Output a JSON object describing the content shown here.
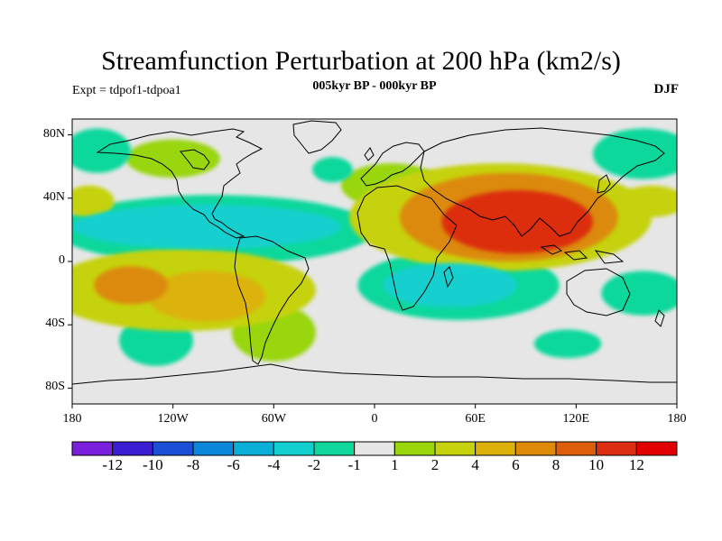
{
  "title": "Streamfunction Perturbation at 200 hPa (km2/s)",
  "left_string": "Expt = tdpof1-tdpoa1",
  "center_string": "005kyr BP - 000kyr BP",
  "right_string": "DJF",
  "y_ticks": [
    {
      "lat": 80,
      "label": "80N"
    },
    {
      "lat": 40,
      "label": "40N"
    },
    {
      "lat": 0,
      "label": "0"
    },
    {
      "lat": -40,
      "label": "40S"
    },
    {
      "lat": -80,
      "label": "80S"
    }
  ],
  "x_ticks": [
    {
      "lon": -180,
      "label": "180"
    },
    {
      "lon": -120,
      "label": "120W"
    },
    {
      "lon": -60,
      "label": "60W"
    },
    {
      "lon": 0,
      "label": "0"
    },
    {
      "lon": 60,
      "label": "60E"
    },
    {
      "lon": 120,
      "label": "120E"
    },
    {
      "lon": 180,
      "label": "180"
    }
  ],
  "colorbar": {
    "colors": [
      "#7a1fdc",
      "#3b1ed2",
      "#1a4fd6",
      "#0a86db",
      "#0bb0d8",
      "#12d0cf",
      "#10d89c",
      "#e6e6e6",
      "#99d60c",
      "#c6d20c",
      "#dcb20a",
      "#dc8a08",
      "#dc5e0a",
      "#dc2e10",
      "#e00000"
    ],
    "labels": [
      "-12",
      "-10",
      "-8",
      "-6",
      "-4",
      "-2",
      "-1",
      "1",
      "2",
      "4",
      "6",
      "8",
      "10",
      "12"
    ]
  },
  "chart_data": {
    "type": "heatmap",
    "title": "Streamfunction Perturbation at 200 hPa (km2/s)",
    "subtitle": "005kyr BP - 000kyr BP",
    "season": "DJF",
    "experiment": "Expt = tdpof1-tdpoa1",
    "x_range": [
      -180,
      180
    ],
    "y_range": [
      -90,
      90
    ],
    "levels": [
      -12,
      -10,
      -8,
      -6,
      -4,
      -2,
      -1,
      1,
      2,
      4,
      6,
      8,
      10,
      12
    ],
    "features": [
      {
        "lon": 85,
        "lat": 25,
        "value": 11,
        "rx": 45,
        "ry": 20
      },
      {
        "lon": 80,
        "lat": 28,
        "value": 6,
        "rx": 65,
        "ry": 28
      },
      {
        "lon": 75,
        "lat": 28,
        "value": 2.5,
        "rx": 90,
        "ry": 34
      },
      {
        "lon": 10,
        "lat": 48,
        "value": 1.5,
        "rx": 30,
        "ry": 14
      },
      {
        "lon": -145,
        "lat": -15,
        "value": 7,
        "rx": 22,
        "ry": 12
      },
      {
        "lon": -100,
        "lat": -22,
        "value": 4,
        "rx": 35,
        "ry": 16
      },
      {
        "lon": -115,
        "lat": -18,
        "value": 2.5,
        "rx": 80,
        "ry": 26
      },
      {
        "lon": -60,
        "lat": -45,
        "value": 1.5,
        "rx": 25,
        "ry": 18
      },
      {
        "lon": 165,
        "lat": 38,
        "value": 2,
        "rx": 20,
        "ry": 10
      },
      {
        "lon": -170,
        "lat": 38,
        "value": 2,
        "rx": 15,
        "ry": 10
      },
      {
        "lon": -120,
        "lat": 65,
        "value": 1.5,
        "rx": 28,
        "ry": 12
      },
      {
        "lon": -100,
        "lat": 22,
        "value": -3,
        "rx": 80,
        "ry": 14
      },
      {
        "lon": -95,
        "lat": 20,
        "value": -1.5,
        "rx": 95,
        "ry": 22
      },
      {
        "lon": 45,
        "lat": -15,
        "value": -3,
        "rx": 40,
        "ry": 14
      },
      {
        "lon": 50,
        "lat": -15,
        "value": -1.5,
        "rx": 60,
        "ry": 22
      },
      {
        "lon": -130,
        "lat": -50,
        "value": -2,
        "rx": 22,
        "ry": 16
      },
      {
        "lon": 115,
        "lat": -52,
        "value": -1.5,
        "rx": 20,
        "ry": 9
      },
      {
        "lon": 160,
        "lat": 68,
        "value": -1.5,
        "rx": 30,
        "ry": 16
      },
      {
        "lon": -165,
        "lat": 70,
        "value": -1.5,
        "rx": 20,
        "ry": 14
      },
      {
        "lon": -25,
        "lat": 58,
        "value": -1.5,
        "rx": 12,
        "ry": 8
      },
      {
        "lon": 160,
        "lat": -20,
        "value": -1.5,
        "rx": 25,
        "ry": 14
      }
    ]
  }
}
